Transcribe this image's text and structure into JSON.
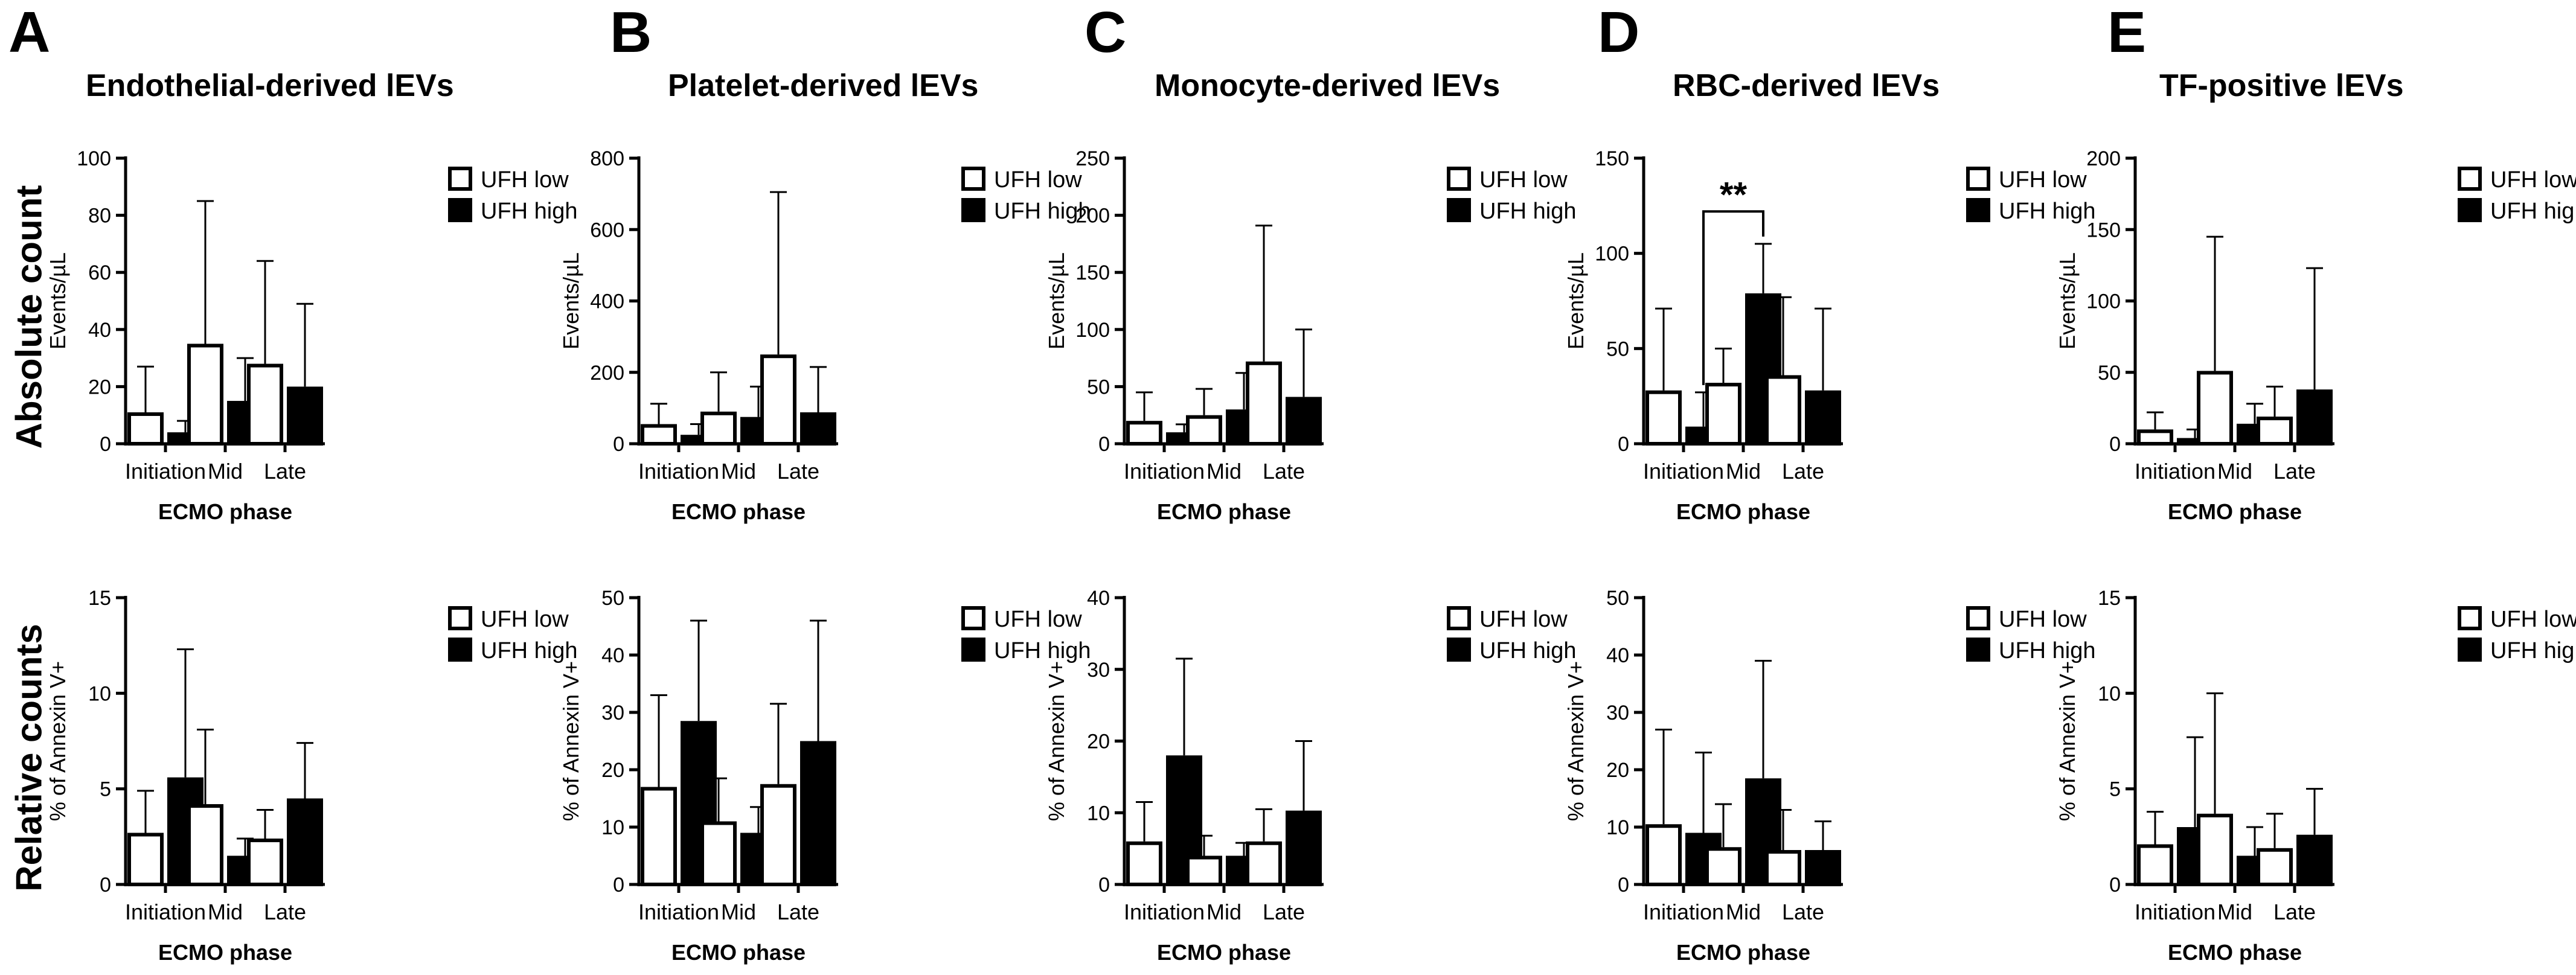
{
  "figure": {
    "row_labels": [
      "Absolute count",
      "Relative counts"
    ],
    "panels": [
      {
        "letter": "A",
        "title": "Endothelial-derived lEVs"
      },
      {
        "letter": "B",
        "title": "Platelet-derived lEVs"
      },
      {
        "letter": "C",
        "title": "Monocyte-derived lEVs"
      },
      {
        "letter": "D",
        "title": "RBC-derived lEVs"
      },
      {
        "letter": "E",
        "title": "TF-positive lEVs"
      }
    ]
  },
  "colors": {
    "ufh_low_fill": "#ffffff",
    "ufh_high_fill": "#000000",
    "stroke": "#000000"
  },
  "chart_data": [
    {
      "panel": "A",
      "row": "Absolute count",
      "type": "bar",
      "categories": [
        "Initiation",
        "Mid",
        "Late"
      ],
      "xlabel": "ECMO phase",
      "ylabel": "Events/µL",
      "ylim": [
        0,
        100
      ],
      "yticks": [
        0,
        20,
        40,
        60,
        80,
        100
      ],
      "series": [
        {
          "name": "UFH low",
          "values": [
            11,
            35,
            28
          ],
          "error_upper": [
            27,
            85,
            64
          ]
        },
        {
          "name": "UFH high",
          "values": [
            4,
            15,
            20
          ],
          "error_upper": [
            8,
            30,
            49
          ]
        }
      ],
      "legend": "top-right"
    },
    {
      "panel": "B",
      "row": "Absolute count",
      "type": "bar",
      "categories": [
        "Initiation",
        "Mid",
        "Late"
      ],
      "xlabel": "ECMO phase",
      "ylabel": "Events/µL",
      "ylim": [
        0,
        800
      ],
      "yticks": [
        0,
        200,
        400,
        600,
        800
      ],
      "series": [
        {
          "name": "UFH low",
          "values": [
            55,
            90,
            250
          ],
          "error_upper": [
            112,
            200,
            705
          ]
        },
        {
          "name": "UFH high",
          "values": [
            25,
            75,
            88
          ],
          "error_upper": [
            55,
            160,
            215
          ]
        }
      ],
      "legend": "top-right"
    },
    {
      "panel": "C",
      "row": "Absolute count",
      "type": "bar",
      "categories": [
        "Initiation",
        "Mid",
        "Late"
      ],
      "xlabel": "ECMO phase",
      "ylabel": "Events/µL",
      "ylim": [
        0,
        250
      ],
      "yticks": [
        0,
        50,
        100,
        150,
        200,
        250
      ],
      "series": [
        {
          "name": "UFH low",
          "values": [
            20,
            25,
            72
          ],
          "error_upper": [
            45,
            48,
            191
          ]
        },
        {
          "name": "UFH high",
          "values": [
            10,
            30,
            41
          ],
          "error_upper": [
            17,
            62,
            100
          ]
        }
      ],
      "legend": "top-right"
    },
    {
      "panel": "D",
      "row": "Absolute count",
      "type": "bar",
      "categories": [
        "Initiation",
        "Mid",
        "Late"
      ],
      "xlabel": "ECMO phase",
      "ylabel": "Events/µL",
      "ylim": [
        0,
        150
      ],
      "yticks": [
        0,
        50,
        100,
        150
      ],
      "series": [
        {
          "name": "UFH low",
          "values": [
            28,
            32,
            36
          ],
          "error_upper": [
            71,
            50,
            77
          ]
        },
        {
          "name": "UFH high",
          "values": [
            9,
            79,
            28
          ],
          "error_upper": [
            27,
            105,
            71
          ]
        }
      ],
      "legend": "top-right",
      "annotations": [
        {
          "text": "**",
          "from": {
            "category": "Initiation",
            "series": "UFH high"
          },
          "to": {
            "category": "Mid",
            "series": "UFH high"
          },
          "bracket_y": 122
        }
      ]
    },
    {
      "panel": "E",
      "row": "Absolute count",
      "type": "bar",
      "categories": [
        "Initiation",
        "Mid",
        "Late"
      ],
      "xlabel": "ECMO phase",
      "ylabel": "Events/µL",
      "ylim": [
        0,
        200
      ],
      "yticks": [
        0,
        50,
        100,
        150,
        200
      ],
      "series": [
        {
          "name": "UFH low",
          "values": [
            10,
            51,
            19
          ],
          "error_upper": [
            22,
            145,
            40
          ]
        },
        {
          "name": "UFH high",
          "values": [
            4,
            14,
            38
          ],
          "error_upper": [
            10,
            28,
            123
          ]
        }
      ],
      "legend": "top-right"
    },
    {
      "panel": "A",
      "row": "Relative counts",
      "type": "bar",
      "categories": [
        "Initiation",
        "Mid",
        "Late"
      ],
      "xlabel": "ECMO phase",
      "ylabel": "% of Annexin V+",
      "ylim": [
        0,
        15
      ],
      "yticks": [
        0,
        5,
        10,
        15
      ],
      "series": [
        {
          "name": "UFH low",
          "values": [
            2.7,
            4.2,
            2.4
          ],
          "error_upper": [
            4.9,
            8.1,
            3.9
          ]
        },
        {
          "name": "UFH high",
          "values": [
            5.6,
            1.5,
            4.5
          ],
          "error_upper": [
            12.3,
            2.4,
            7.4
          ]
        }
      ],
      "legend": "top-right"
    },
    {
      "panel": "B",
      "row": "Relative counts",
      "type": "bar",
      "categories": [
        "Initiation",
        "Mid",
        "Late"
      ],
      "xlabel": "ECMO phase",
      "ylabel": "% of Annexin V+",
      "ylim": [
        0,
        50
      ],
      "yticks": [
        0,
        10,
        20,
        30,
        40,
        50
      ],
      "series": [
        {
          "name": "UFH low",
          "values": [
            17,
            11,
            17.5
          ],
          "error_upper": [
            33,
            18.5,
            31.5
          ]
        },
        {
          "name": "UFH high",
          "values": [
            28.5,
            9,
            25
          ],
          "error_upper": [
            46,
            13.5,
            46
          ]
        }
      ],
      "legend": "top-right"
    },
    {
      "panel": "C",
      "row": "Relative counts",
      "type": "bar",
      "categories": [
        "Initiation",
        "Mid",
        "Late"
      ],
      "xlabel": "ECMO phase",
      "ylabel": "% of Annexin V+",
      "ylim": [
        0,
        40
      ],
      "yticks": [
        0,
        10,
        20,
        30,
        40
      ],
      "series": [
        {
          "name": "UFH low",
          "values": [
            6,
            4,
            6
          ],
          "error_upper": [
            11.5,
            6.8,
            10.5
          ]
        },
        {
          "name": "UFH high",
          "values": [
            18,
            4,
            10.3
          ],
          "error_upper": [
            31.5,
            5.8,
            20
          ]
        }
      ],
      "legend": "top-right"
    },
    {
      "panel": "D",
      "row": "Relative counts",
      "type": "bar",
      "categories": [
        "Initiation",
        "Mid",
        "Late"
      ],
      "xlabel": "ECMO phase",
      "ylabel": "% of Annexin V+",
      "ylim": [
        0,
        50
      ],
      "yticks": [
        0,
        10,
        20,
        30,
        40,
        50
      ],
      "series": [
        {
          "name": "UFH low",
          "values": [
            10.5,
            6.5,
            6
          ],
          "error_upper": [
            27,
            14,
            13
          ]
        },
        {
          "name": "UFH high",
          "values": [
            9,
            18.5,
            6
          ],
          "error_upper": [
            23,
            39,
            11
          ]
        }
      ],
      "legend": "top-right"
    },
    {
      "panel": "E",
      "row": "Relative counts",
      "type": "bar",
      "categories": [
        "Initiation",
        "Mid",
        "Late"
      ],
      "xlabel": "ECMO phase",
      "ylabel": "% of Annexin V+",
      "ylim": [
        0,
        15
      ],
      "yticks": [
        0,
        5,
        10,
        15
      ],
      "series": [
        {
          "name": "UFH low",
          "values": [
            2.1,
            3.7,
            1.9
          ],
          "error_upper": [
            3.8,
            10,
            3.7
          ]
        },
        {
          "name": "UFH high",
          "values": [
            3,
            1.5,
            2.6
          ],
          "error_upper": [
            7.7,
            3,
            5
          ]
        }
      ],
      "legend": "top-right"
    }
  ]
}
